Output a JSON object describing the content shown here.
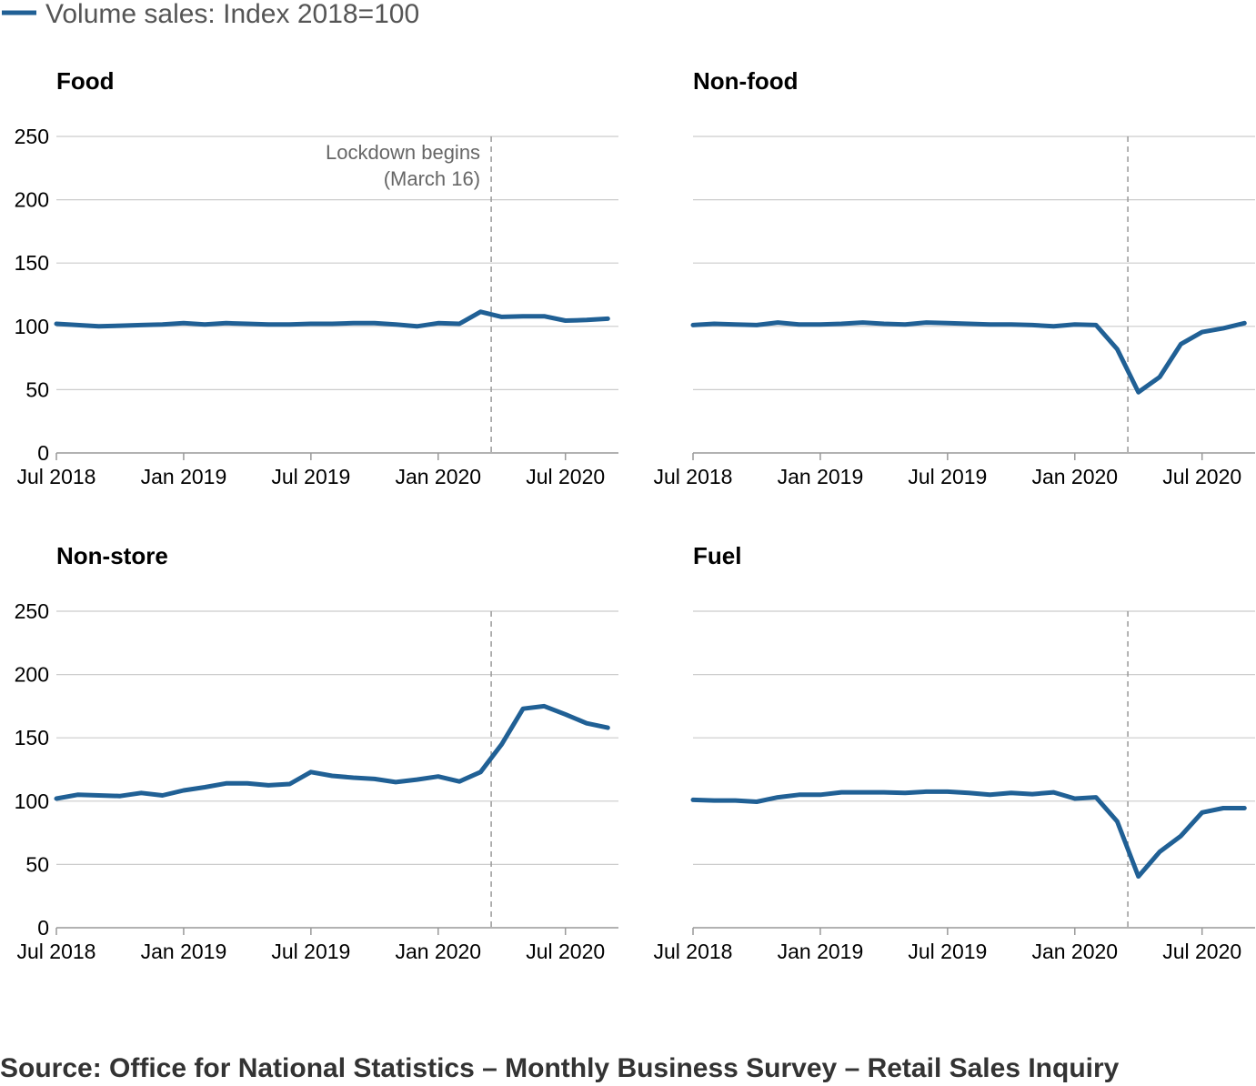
{
  "legend": {
    "label": "Volume sales: Index 2018=100",
    "color": "#206095"
  },
  "source": "Source: Office for National Statistics – Monthly Business Survey – Retail Sales Inquiry",
  "colors": {
    "line": "#206095",
    "grid": "#cccccc",
    "axis": "#999999",
    "lockdown": "#999999"
  },
  "chart_data": [
    {
      "type": "line",
      "title": "Food",
      "x": [
        "2018-07",
        "2018-08",
        "2018-09",
        "2018-10",
        "2018-11",
        "2018-12",
        "2019-01",
        "2019-02",
        "2019-03",
        "2019-04",
        "2019-05",
        "2019-06",
        "2019-07",
        "2019-08",
        "2019-09",
        "2019-10",
        "2019-11",
        "2019-12",
        "2020-01",
        "2020-02",
        "2020-03",
        "2020-04",
        "2020-05",
        "2020-06",
        "2020-07",
        "2020-08",
        "2020-09"
      ],
      "series": [
        {
          "name": "Volume sales: Index 2018=100",
          "values": [
            102,
            101,
            100,
            100.5,
            101,
            101.5,
            102.5,
            101.5,
            102.5,
            102,
            101.5,
            101.5,
            102,
            102,
            102.5,
            102.5,
            101.5,
            100,
            102.5,
            102,
            111.5,
            107.5,
            108,
            108,
            104.5,
            105,
            106
          ]
        }
      ],
      "xticks": [
        "Jul 2018",
        "Jan 2019",
        "Jul 2019",
        "Jan 2020",
        "Jul 2020"
      ],
      "yticks": [
        0,
        50,
        100,
        150,
        200,
        250
      ],
      "ylim": [
        0,
        250
      ],
      "annotation": {
        "x": "2020-03-16",
        "label_lines": [
          "Lockdown begins",
          "(March 16)"
        ]
      }
    },
    {
      "type": "line",
      "title": "Non-food",
      "x": [
        "2018-07",
        "2018-08",
        "2018-09",
        "2018-10",
        "2018-11",
        "2018-12",
        "2019-01",
        "2019-02",
        "2019-03",
        "2019-04",
        "2019-05",
        "2019-06",
        "2019-07",
        "2019-08",
        "2019-09",
        "2019-10",
        "2019-11",
        "2019-12",
        "2020-01",
        "2020-02",
        "2020-03",
        "2020-04",
        "2020-05",
        "2020-06",
        "2020-07",
        "2020-08",
        "2020-09"
      ],
      "series": [
        {
          "name": "Volume sales: Index 2018=100",
          "values": [
            101,
            102,
            101.5,
            101,
            103,
            101.5,
            101.5,
            102,
            103,
            102,
            101.5,
            103,
            102.5,
            102,
            101.5,
            101.5,
            101,
            100,
            101.5,
            101,
            82,
            48,
            60,
            86,
            95.5,
            98.5,
            102.5
          ]
        }
      ],
      "xticks": [
        "Jul 2018",
        "Jan 2019",
        "Jul 2019",
        "Jan 2020",
        "Jul 2020"
      ],
      "yticks": [
        0,
        50,
        100,
        150,
        200,
        250
      ],
      "ylim": [
        0,
        250
      ],
      "annotation": {
        "x": "2020-03-16"
      }
    },
    {
      "type": "line",
      "title": "Non-store",
      "x": [
        "2018-07",
        "2018-08",
        "2018-09",
        "2018-10",
        "2018-11",
        "2018-12",
        "2019-01",
        "2019-02",
        "2019-03",
        "2019-04",
        "2019-05",
        "2019-06",
        "2019-07",
        "2019-08",
        "2019-09",
        "2019-10",
        "2019-11",
        "2019-12",
        "2020-01",
        "2020-02",
        "2020-03",
        "2020-04",
        "2020-05",
        "2020-06",
        "2020-07",
        "2020-08",
        "2020-09"
      ],
      "series": [
        {
          "name": "Volume sales: Index 2018=100",
          "values": [
            102,
            105,
            104.5,
            104,
            106.5,
            104.5,
            108.5,
            111,
            114,
            114,
            112.5,
            113.5,
            123,
            120,
            118.5,
            117.5,
            115,
            117,
            119.5,
            115.5,
            123,
            145,
            173,
            175,
            168.5,
            161.5,
            158
          ]
        }
      ],
      "xticks": [
        "Jul 2018",
        "Jan 2019",
        "Jul 2019",
        "Jan 2020",
        "Jul 2020"
      ],
      "yticks": [
        0,
        50,
        100,
        150,
        200,
        250
      ],
      "ylim": [
        0,
        250
      ],
      "annotation": {
        "x": "2020-03-16"
      }
    },
    {
      "type": "line",
      "title": "Fuel",
      "x": [
        "2018-07",
        "2018-08",
        "2018-09",
        "2018-10",
        "2018-11",
        "2018-12",
        "2019-01",
        "2019-02",
        "2019-03",
        "2019-04",
        "2019-05",
        "2019-06",
        "2019-07",
        "2019-08",
        "2019-09",
        "2019-10",
        "2019-11",
        "2019-12",
        "2020-01",
        "2020-02",
        "2020-03",
        "2020-04",
        "2020-05",
        "2020-06",
        "2020-07",
        "2020-08",
        "2020-09"
      ],
      "series": [
        {
          "name": "Volume sales: Index 2018=100",
          "values": [
            101,
            100.5,
            100.5,
            99.5,
            103,
            105,
            105,
            107,
            107,
            107,
            106.5,
            107.5,
            107.5,
            106.5,
            105,
            106.5,
            105.5,
            107,
            102,
            103,
            84,
            40.5,
            60,
            72.5,
            91,
            94.5,
            94.5
          ]
        }
      ],
      "xticks": [
        "Jul 2018",
        "Jan 2019",
        "Jul 2019",
        "Jan 2020",
        "Jul 2020"
      ],
      "yticks": [
        0,
        50,
        100,
        150,
        200,
        250
      ],
      "ylim": [
        0,
        250
      ],
      "annotation": {
        "x": "2020-03-16"
      }
    }
  ]
}
